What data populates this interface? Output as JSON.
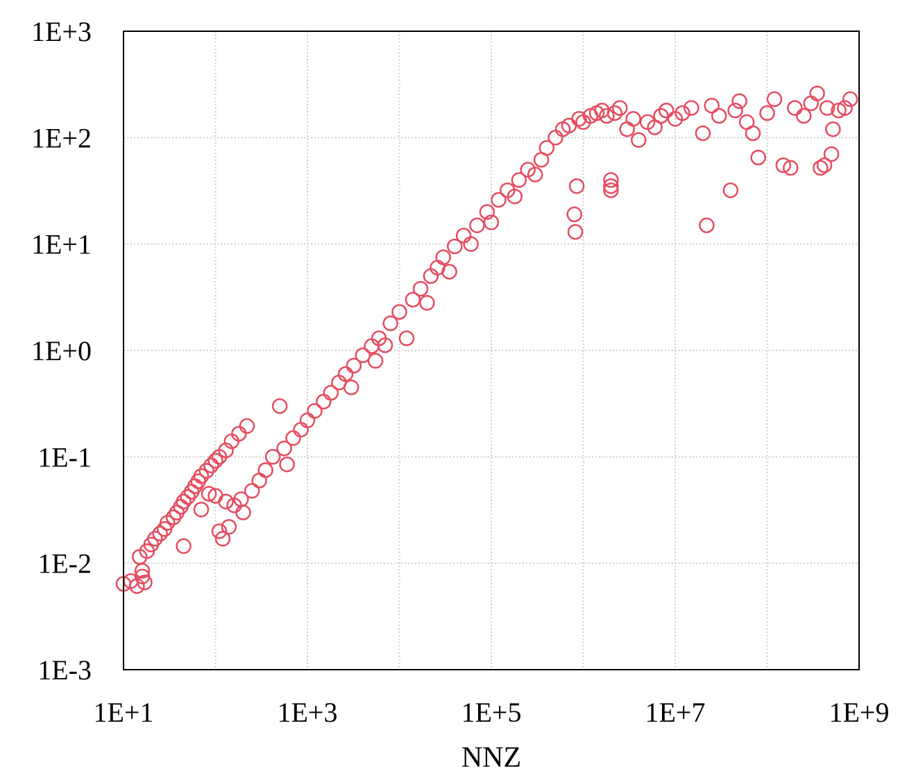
{
  "chart_data": {
    "type": "scatter",
    "title": "",
    "xlabel": "NNZ",
    "ylabel": "",
    "x_scale": "log",
    "y_scale": "log",
    "xlim": [
      10,
      1000000000
    ],
    "ylim": [
      0.001,
      1000
    ],
    "grid": true,
    "legend": "none",
    "marker": "hollow-circle",
    "color": "#e64c5f",
    "x_ticks": [
      {
        "value": 10,
        "label": "1E+1"
      },
      {
        "value": 1000,
        "label": "1E+3"
      },
      {
        "value": 100000,
        "label": "1E+5"
      },
      {
        "value": 10000000,
        "label": "1E+7"
      },
      {
        "value": 1000000000,
        "label": "1E+9"
      }
    ],
    "y_ticks": [
      {
        "value": 0.001,
        "label": "1E-3"
      },
      {
        "value": 0.01,
        "label": "1E-2"
      },
      {
        "value": 0.1,
        "label": "1E-1"
      },
      {
        "value": 1,
        "label": "1E+0"
      },
      {
        "value": 10,
        "label": "1E+1"
      },
      {
        "value": 100,
        "label": "1E+2"
      },
      {
        "value": 1000,
        "label": "1E+3"
      }
    ],
    "x_minor_grid": [
      100,
      10000,
      1000000,
      100000000
    ],
    "points": [
      [
        10,
        0.0064
      ],
      [
        12,
        0.0068
      ],
      [
        14,
        0.0061
      ],
      [
        16,
        0.0075
      ],
      [
        17,
        0.0066
      ],
      [
        16,
        0.0085
      ],
      [
        15,
        0.0115
      ],
      [
        18,
        0.013
      ],
      [
        20,
        0.015
      ],
      [
        22,
        0.017
      ],
      [
        25,
        0.019
      ],
      [
        28,
        0.021
      ],
      [
        30,
        0.024
      ],
      [
        35,
        0.027
      ],
      [
        38,
        0.03
      ],
      [
        42,
        0.034
      ],
      [
        45,
        0.038
      ],
      [
        50,
        0.042
      ],
      [
        55,
        0.047
      ],
      [
        60,
        0.053
      ],
      [
        65,
        0.059
      ],
      [
        70,
        0.066
      ],
      [
        80,
        0.074
      ],
      [
        90,
        0.083
      ],
      [
        100,
        0.092
      ],
      [
        110,
        0.1
      ],
      [
        130,
        0.115
      ],
      [
        150,
        0.14
      ],
      [
        180,
        0.165
      ],
      [
        220,
        0.195
      ],
      [
        45,
        0.0145
      ],
      [
        70,
        0.032
      ],
      [
        85,
        0.045
      ],
      [
        100,
        0.043
      ],
      [
        110,
        0.02
      ],
      [
        120,
        0.017
      ],
      [
        140,
        0.022
      ],
      [
        130,
        0.038
      ],
      [
        160,
        0.035
      ],
      [
        190,
        0.04
      ],
      [
        200,
        0.03
      ],
      [
        250,
        0.048
      ],
      [
        300,
        0.06
      ],
      [
        350,
        0.075
      ],
      [
        420,
        0.1
      ],
      [
        500,
        0.3
      ],
      [
        560,
        0.12
      ],
      [
        600,
        0.085
      ],
      [
        700,
        0.15
      ],
      [
        850,
        0.18
      ],
      [
        1000,
        0.22
      ],
      [
        1200,
        0.27
      ],
      [
        1500,
        0.33
      ],
      [
        1800,
        0.4
      ],
      [
        2200,
        0.5
      ],
      [
        2600,
        0.6
      ],
      [
        3000,
        0.45
      ],
      [
        3200,
        0.72
      ],
      [
        4000,
        0.9
      ],
      [
        5000,
        1.1
      ],
      [
        5500,
        0.8
      ],
      [
        6000,
        1.3
      ],
      [
        7000,
        1.12
      ],
      [
        8000,
        1.8
      ],
      [
        10000,
        2.3
      ],
      [
        12000,
        1.3
      ],
      [
        14000,
        3.0
      ],
      [
        17000,
        3.8
      ],
      [
        20000,
        2.8
      ],
      [
        22000,
        5.0
      ],
      [
        26000,
        6.0
      ],
      [
        30000,
        7.5
      ],
      [
        35000,
        5.5
      ],
      [
        40000,
        9.5
      ],
      [
        50000,
        12
      ],
      [
        60000,
        10
      ],
      [
        70000,
        15
      ],
      [
        90000,
        20
      ],
      [
        100000,
        16
      ],
      [
        120000,
        26
      ],
      [
        150000,
        32
      ],
      [
        180000,
        28
      ],
      [
        200000,
        40
      ],
      [
        250000,
        50
      ],
      [
        300000,
        45
      ],
      [
        350000,
        62
      ],
      [
        400000,
        80
      ],
      [
        500000,
        100
      ],
      [
        600000,
        120
      ],
      [
        700000,
        130
      ],
      [
        800000,
        19
      ],
      [
        820000,
        13
      ],
      [
        850000,
        35
      ],
      [
        900000,
        150
      ],
      [
        1000000,
        140
      ],
      [
        1200000,
        160
      ],
      [
        1400000,
        170
      ],
      [
        1600000,
        180
      ],
      [
        1800000,
        160
      ],
      [
        2000000,
        35
      ],
      [
        2000000,
        32
      ],
      [
        2000000,
        40
      ],
      [
        2200000,
        170
      ],
      [
        2500000,
        190
      ],
      [
        3000000,
        120
      ],
      [
        3500000,
        150
      ],
      [
        4000000,
        95
      ],
      [
        5000000,
        140
      ],
      [
        6000000,
        125
      ],
      [
        7000000,
        160
      ],
      [
        8000000,
        180
      ],
      [
        10000000,
        150
      ],
      [
        12000000,
        170
      ],
      [
        15000000,
        190
      ],
      [
        20000000,
        110
      ],
      [
        22000000,
        15
      ],
      [
        25000000,
        200
      ],
      [
        30000000,
        160
      ],
      [
        40000000,
        32
      ],
      [
        45000000,
        180
      ],
      [
        50000000,
        220
      ],
      [
        60000000,
        140
      ],
      [
        70000000,
        110
      ],
      [
        80000000,
        65
      ],
      [
        100000000,
        170
      ],
      [
        120000000,
        230
      ],
      [
        150000000,
        55
      ],
      [
        180000000,
        52
      ],
      [
        200000000,
        190
      ],
      [
        250000000,
        160
      ],
      [
        300000000,
        210
      ],
      [
        350000000,
        260
      ],
      [
        380000000,
        52
      ],
      [
        420000000,
        55
      ],
      [
        450000000,
        190
      ],
      [
        500000000,
        70
      ],
      [
        520000000,
        120
      ],
      [
        600000000,
        180
      ],
      [
        700000000,
        190
      ],
      [
        800000000,
        230
      ]
    ]
  }
}
